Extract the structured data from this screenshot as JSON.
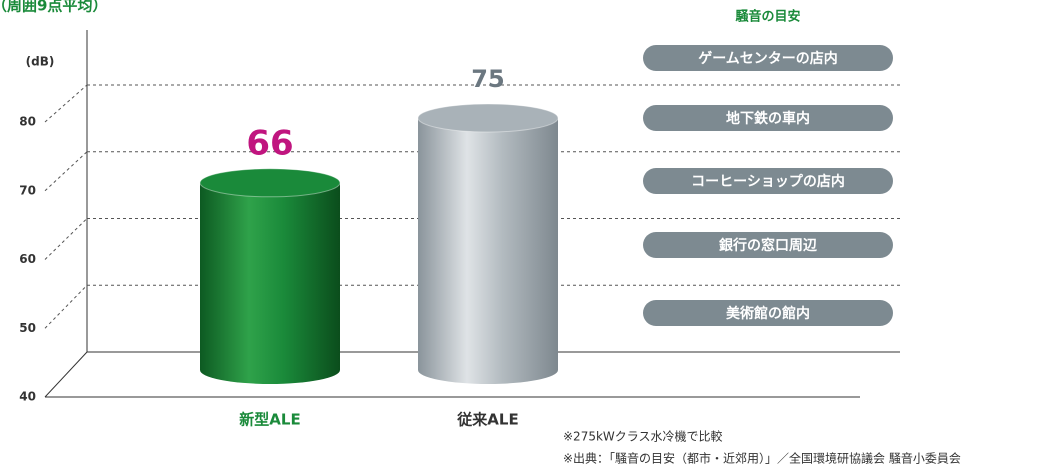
{
  "chart_data": {
    "type": "cylinder-bar",
    "title": "（周囲9点平均）",
    "y_unit_label": "(dB)",
    "categories": [
      "新型ALE",
      "従来ALE"
    ],
    "values": [
      66,
      75
    ],
    "colors": [
      "#1a8a3a",
      "#a9b2b8"
    ],
    "label_colors": [
      "#1a8a3a",
      "#333333"
    ],
    "value_label_colors": [
      "#c0157f",
      "#6b7780"
    ],
    "ylim": [
      40,
      80
    ],
    "yticks": [
      40,
      50,
      60,
      70,
      80
    ],
    "grid": true,
    "reference_title": "騒音の目安",
    "reference_labels": [
      "ゲームセンターの店内",
      "地下鉄の車内",
      "コーヒーショップの店内",
      "銀行の窓口周辺",
      "美術館の館内"
    ],
    "notes": [
      "※275kWクラス水冷機で比較",
      "※出典：「騒音の目安（都市・近郊用）」／全国環境研協議会 騒音小委員会"
    ]
  }
}
